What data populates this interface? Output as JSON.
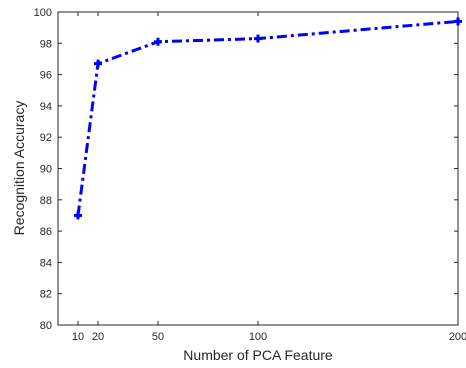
{
  "chart_data": {
    "type": "line",
    "title": "",
    "xlabel": "Number of PCA Feature",
    "ylabel": "Recognition Accuracy",
    "x": [
      10,
      20,
      50,
      100,
      200
    ],
    "series": [
      {
        "values": [
          87.0,
          96.7,
          98.1,
          98.3,
          99.4
        ],
        "color": "#0000ff",
        "line_style": "dash-dot",
        "marker": "plus"
      }
    ],
    "xlim": [
      0,
      200
    ],
    "ylim": [
      80,
      100
    ],
    "xticks": [
      10,
      20,
      50,
      100,
      200
    ],
    "yticks": [
      80,
      82,
      84,
      86,
      88,
      90,
      92,
      94,
      96,
      98,
      100
    ],
    "grid": false,
    "legend": "none"
  }
}
